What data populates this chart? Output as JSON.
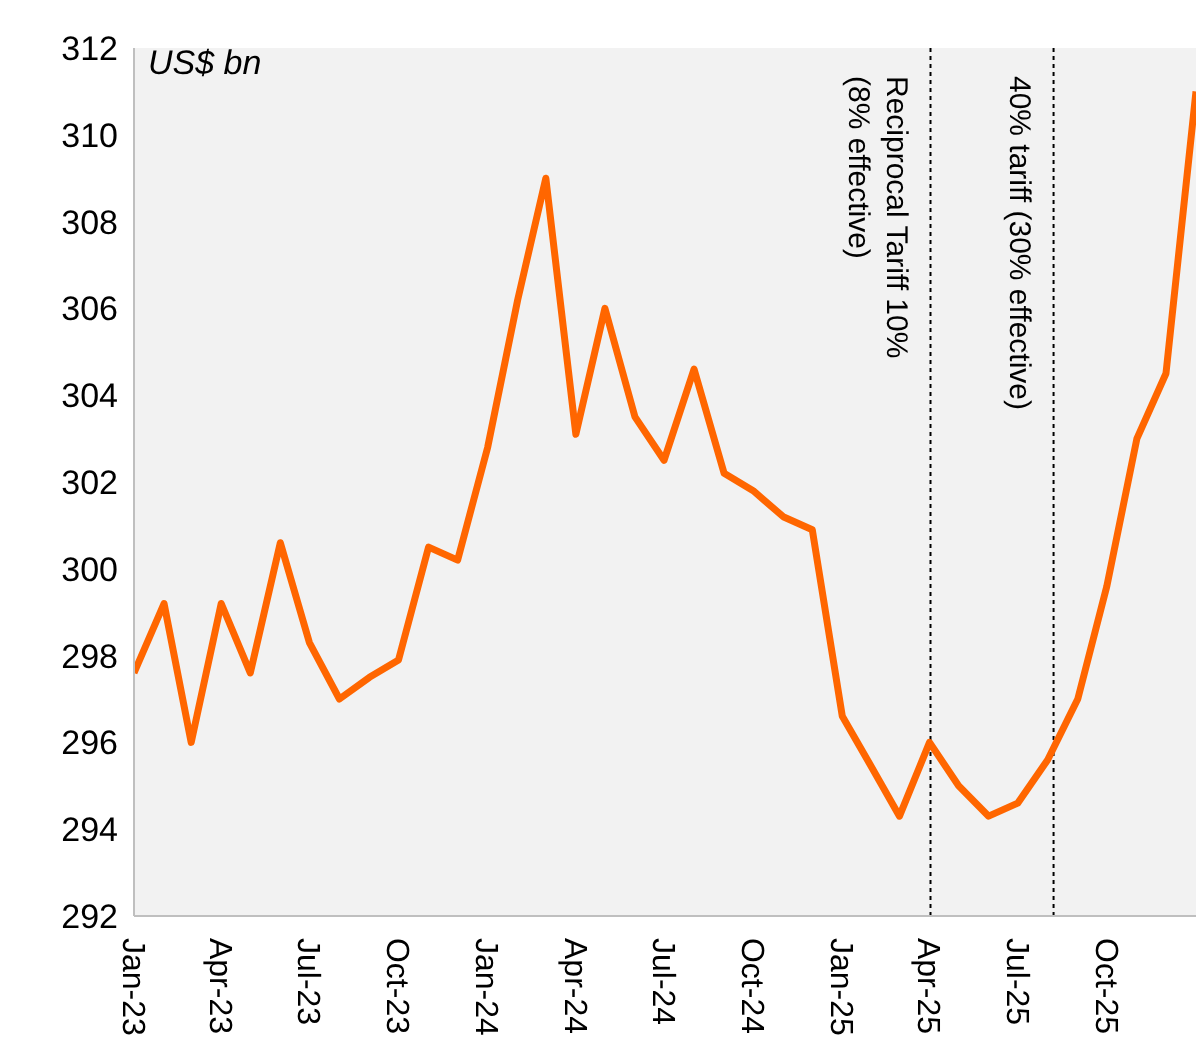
{
  "chart_data": {
    "type": "line",
    "ylabel": "US$ bn",
    "x": [
      "2023-01",
      "2023-02",
      "2023-03",
      "2023-04",
      "2023-05",
      "2023-06",
      "2023-07",
      "2023-08",
      "2023-09",
      "2023-10",
      "2023-11",
      "2023-12",
      "2024-01",
      "2024-02",
      "2024-03",
      "2024-04",
      "2024-05",
      "2024-06",
      "2024-07",
      "2024-08",
      "2024-09",
      "2024-10",
      "2024-11",
      "2024-12",
      "2025-01",
      "2025-02",
      "2025-03",
      "2025-04",
      "2025-05",
      "2025-06",
      "2025-07",
      "2025-08",
      "2025-09",
      "2025-10",
      "2025-11",
      "2025-12",
      "2026-01"
    ],
    "series": [
      {
        "color": "#ff6600",
        "values": [
          297.6,
          299.2,
          296.0,
          299.2,
          297.6,
          300.6,
          298.3,
          297.0,
          297.5,
          297.9,
          300.5,
          300.2,
          302.8,
          306.2,
          309.0,
          303.1,
          306.0,
          303.5,
          302.5,
          304.6,
          302.2,
          301.8,
          301.2,
          300.9,
          296.6,
          295.4,
          294.3,
          296.0,
          295.0,
          294.3,
          294.6,
          295.6,
          297.0,
          299.6,
          303.0,
          304.5,
          311.0
        ]
      }
    ],
    "xlim": [
      "2023-01",
      "2026-01"
    ],
    "xticks": [
      {
        "value": "2023-01",
        "label": "Jan-23"
      },
      {
        "value": "2023-04",
        "label": "Apr-23"
      },
      {
        "value": "2023-07",
        "label": "Jul-23"
      },
      {
        "value": "2023-10",
        "label": "Oct-23"
      },
      {
        "value": "2024-01",
        "label": "Jan-24"
      },
      {
        "value": "2024-04",
        "label": "Apr-24"
      },
      {
        "value": "2024-07",
        "label": "Jul-24"
      },
      {
        "value": "2024-10",
        "label": "Oct-24"
      },
      {
        "value": "2025-01",
        "label": "Jan-25"
      },
      {
        "value": "2025-04",
        "label": "Apr-25"
      },
      {
        "value": "2025-07",
        "label": "Jul-25"
      },
      {
        "value": "2025-10",
        "label": "Oct-25"
      }
    ],
    "ylim": [
      292,
      312
    ],
    "yticks": [
      292,
      294,
      296,
      298,
      300,
      302,
      304,
      306,
      308,
      310,
      312
    ],
    "ref_lines": [
      {
        "axis": "x",
        "value": "2025-04-02",
        "label": "Reciprocal Tariff 10%\n(8% effective)",
        "color": "#000000",
        "line_style": "dotted"
      },
      {
        "axis": "x",
        "value": "2025-08-07",
        "label": "40% tariff (30% effective)",
        "color": "#000000",
        "line_style": "dotted"
      }
    ],
    "grid": false,
    "legend": false,
    "marker": "none",
    "line_style": "solid"
  }
}
